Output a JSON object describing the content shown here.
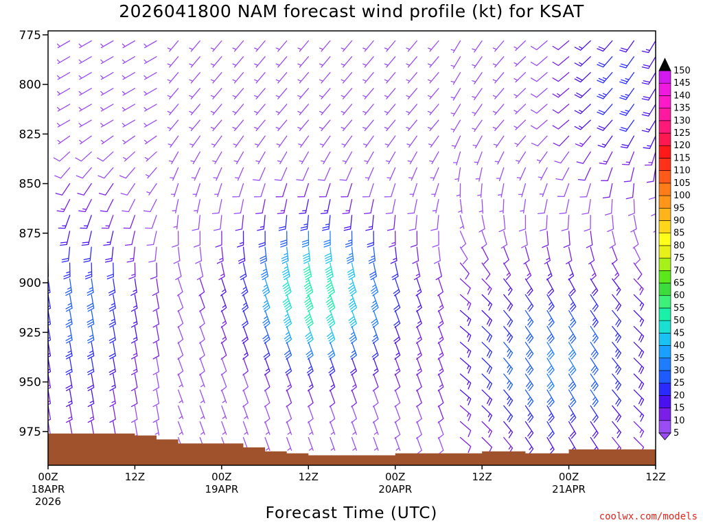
{
  "page": {
    "title": "2026041800 NAM forecast wind profile (kt) for KSAT",
    "credit": "coolwx.com/models"
  },
  "chart_data": {
    "type": "wind_barb_profile",
    "title": "2026041800 NAM forecast wind profile (kt) for KSAT",
    "xlabel": "Forecast Time (UTC)",
    "ylabel": "",
    "x_ticks": [
      {
        "hour": 0,
        "line1": "00Z",
        "line2": "18APR",
        "line3": "2026"
      },
      {
        "hour": 12,
        "line1": "12Z",
        "line2": "",
        "line3": ""
      },
      {
        "hour": 24,
        "line1": "00Z",
        "line2": "19APR",
        "line3": ""
      },
      {
        "hour": 36,
        "line1": "12Z",
        "line2": "",
        "line3": ""
      },
      {
        "hour": 48,
        "line1": "00Z",
        "line2": "20APR",
        "line3": ""
      },
      {
        "hour": 60,
        "line1": "12Z",
        "line2": "",
        "line3": ""
      },
      {
        "hour": 72,
        "line1": "00Z",
        "line2": "21APR",
        "line3": ""
      },
      {
        "hour": 84,
        "line1": "12Z",
        "line2": "",
        "line3": ""
      }
    ],
    "xlim": [
      0,
      84
    ],
    "y_ticks": [
      775,
      800,
      825,
      850,
      875,
      900,
      925,
      950,
      975
    ],
    "ylim_hPa": [
      773,
      992
    ],
    "surface_pressure_hPa": {
      "hours": [
        0,
        6,
        9,
        12,
        15,
        18,
        21,
        24,
        27,
        30,
        33,
        36,
        42,
        48,
        54,
        60,
        66,
        72,
        78,
        84
      ],
      "values": [
        976,
        976,
        976,
        977,
        979,
        981,
        981,
        981,
        983,
        985,
        986,
        987,
        987,
        986,
        986,
        985,
        986,
        984,
        984,
        983
      ]
    },
    "wind_field_description": {
      "time_step_hours": 3,
      "levels_hPa": [
        778,
        786,
        794,
        802,
        810,
        818,
        826,
        834,
        842,
        850,
        858,
        866,
        874,
        882,
        890,
        898,
        906,
        914,
        922,
        930,
        938,
        946,
        954,
        962,
        970,
        978,
        986
      ],
      "peak_speed_kt": 52,
      "peak_time_hour": 37,
      "peak_level_hPa": 902
    },
    "colorbar": {
      "levels": [
        5,
        10,
        15,
        20,
        25,
        30,
        35,
        40,
        45,
        50,
        55,
        60,
        65,
        70,
        75,
        80,
        85,
        90,
        95,
        100,
        105,
        110,
        115,
        120,
        125,
        130,
        135,
        140,
        145,
        150
      ],
      "colors": [
        "#9a4cf5",
        "#7a1ee8",
        "#4a10f0",
        "#2a2aff",
        "#1e5bff",
        "#1e7cff",
        "#1aa0ff",
        "#19c2f2",
        "#19e0d0",
        "#19f0a8",
        "#3cf07a",
        "#3cdc3c",
        "#5ae81a",
        "#a8f01a",
        "#e8f01a",
        "#ffff19",
        "#ffd619",
        "#ffb419",
        "#ff9619",
        "#ff7d19",
        "#ff5a19",
        "#ff3219",
        "#ff1919",
        "#ff1950",
        "#ff1978",
        "#ff19a0",
        "#ff19c8",
        "#f019e0",
        "#d219f0",
        "#b019f8"
      ]
    },
    "colors": {
      "ground": "#a0522d",
      "credit": "#e0241b"
    }
  }
}
